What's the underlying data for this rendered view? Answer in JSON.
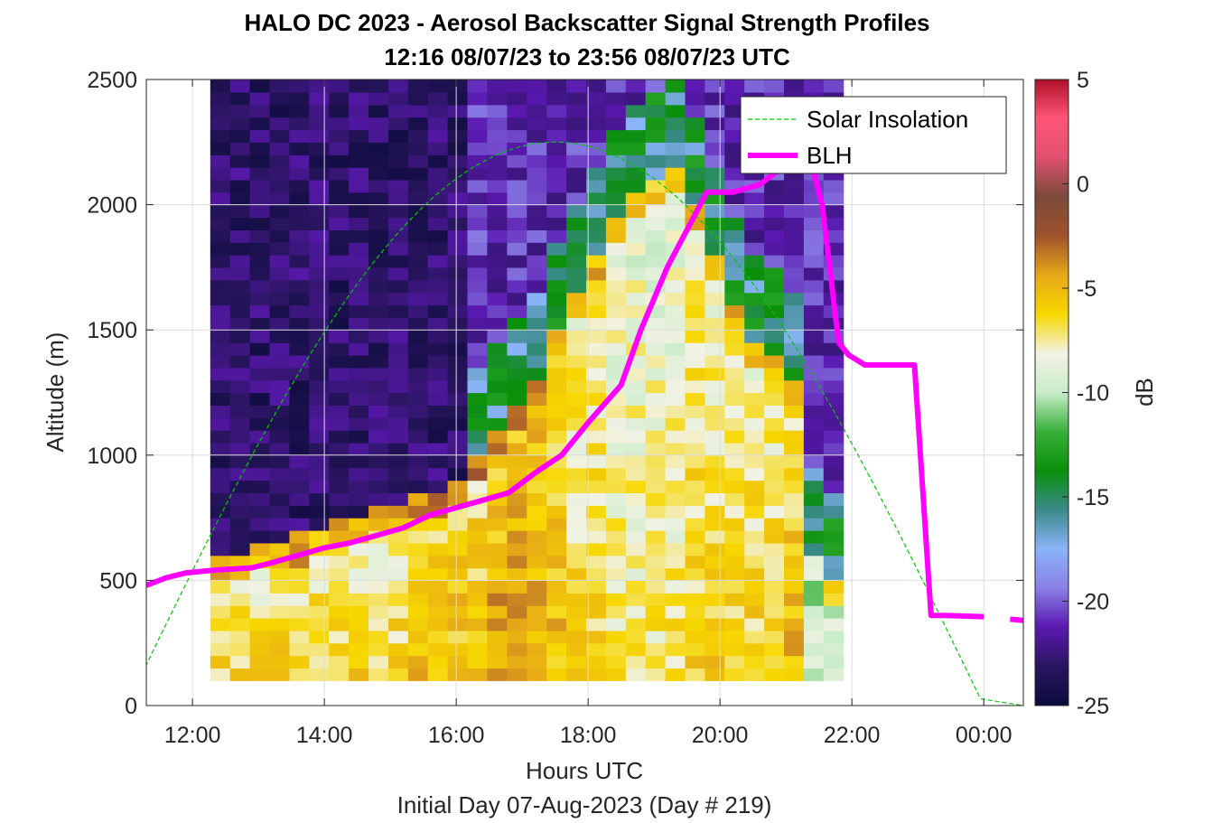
{
  "chart_data": {
    "type": "heatmap",
    "title": "HALO DC 2023 - Aerosol Backscatter Signal Strength Profiles",
    "subtitle": "12:16 08/07/23 to 23:56 08/07/23  UTC",
    "xlabel": "Hours UTC",
    "footer": "Initial Day 07-Aug-2023 (Day # 219)",
    "ylabel": "Altitude (m)",
    "xlim": [
      11.3,
      24.6
    ],
    "ylim": [
      0,
      2500
    ],
    "x_ticks": [
      12,
      14,
      16,
      18,
      20,
      22,
      24
    ],
    "x_tick_labels": [
      "12:00",
      "14:00",
      "16:00",
      "18:00",
      "20:00",
      "22:00",
      "00:00"
    ],
    "y_ticks": [
      0,
      500,
      1000,
      1500,
      2000,
      2500
    ],
    "y_tick_labels": [
      "0",
      "500",
      "1000",
      "1500",
      "2000",
      "2500"
    ],
    "grid": true,
    "colorbar": {
      "label": "dB",
      "range": [
        -25,
        5
      ],
      "ticks": [
        -25,
        -20,
        -15,
        -10,
        -5,
        0,
        5
      ],
      "tick_labels": [
        "-25",
        "-20",
        "-15",
        "-10",
        "-5",
        "0",
        "5"
      ],
      "colors": [
        "#0b0b3b",
        "#2a1560",
        "#5a18b0",
        "#8a7fe6",
        "#8ab4f8",
        "#3a8a8a",
        "#0a8f0a",
        "#38b038",
        "#c8ecc8",
        "#f2f2e4",
        "#f7d700",
        "#e6a817",
        "#a0522d",
        "#7a4a3a",
        "#e05070",
        "#ff5577",
        "#b0102a"
      ]
    },
    "grid_data": {
      "time_start": 12.27,
      "time_step": 0.3,
      "alt_start": 100,
      "alt_step": 50,
      "columns": [
        {
          "sfc": -6,
          "top": 580
        },
        {
          "sfc": -6,
          "top": 600
        },
        {
          "sfc": -6,
          "top": 620
        },
        {
          "sfc": -6,
          "top": 640
        },
        {
          "sfc": -6,
          "top": 660
        },
        {
          "sfc": -6,
          "top": 690
        },
        {
          "sfc": -6,
          "top": 720
        },
        {
          "sfc": -6,
          "top": 750
        },
        {
          "sfc": -6,
          "top": 780
        },
        {
          "sfc": -6,
          "top": 800
        },
        {
          "sfc": -5,
          "top": 820
        },
        {
          "sfc": -5,
          "top": 850
        },
        {
          "sfc": -5,
          "top": 900
        },
        {
          "sfc": -5,
          "top": 980
        },
        {
          "sfc": -4,
          "top": 1100
        },
        {
          "sfc": -4,
          "top": 1200
        },
        {
          "sfc": -4,
          "top": 1300
        },
        {
          "sfc": -5,
          "top": 1500
        },
        {
          "sfc": -6,
          "top": 1650
        },
        {
          "sfc": -6,
          "top": 1800
        },
        {
          "sfc": -7,
          "top": 1950
        },
        {
          "sfc": -7,
          "top": 2050
        },
        {
          "sfc": -7,
          "top": 2100
        },
        {
          "sfc": -7,
          "top": 2150
        },
        {
          "sfc": -6,
          "top": 2000
        },
        {
          "sfc": -6,
          "top": 1800
        },
        {
          "sfc": -6,
          "top": 1600
        },
        {
          "sfc": -6,
          "top": 1450
        },
        {
          "sfc": -6,
          "top": 1400
        },
        {
          "sfc": -5,
          "top": 1300
        },
        {
          "sfc": -9,
          "top": 600
        },
        {
          "sfc": -8,
          "top": 500
        }
      ]
    },
    "series": [
      {
        "name": "Solar Insolation",
        "style": "dashed",
        "color": "#00c800",
        "peak_time": 17.25,
        "peak_alt": 2250,
        "zero_times": [
          11.0,
          24.0
        ]
      },
      {
        "name": "BLH",
        "style": "solid",
        "color": "#ff00ff",
        "x": [
          11.3,
          11.6,
          11.9,
          12.3,
          12.9,
          13.2,
          13.6,
          14.0,
          14.4,
          14.8,
          15.2,
          15.6,
          16.0,
          16.4,
          16.8,
          17.2,
          17.6,
          18.0,
          18.4,
          18.5,
          18.8,
          19.2,
          19.6,
          19.8,
          20.2,
          20.6,
          20.9,
          21.1,
          21.4,
          21.55,
          21.8,
          21.95,
          22.2,
          22.4,
          22.8,
          22.95,
          23.2,
          23.4,
          24.0,
          24.4,
          24.6
        ],
        "y": [
          480,
          510,
          530,
          540,
          550,
          570,
          600,
          630,
          650,
          680,
          710,
          760,
          790,
          820,
          850,
          930,
          1000,
          1130,
          1250,
          1280,
          1500,
          1750,
          1950,
          2050,
          2050,
          2080,
          2140,
          2150,
          2150,
          2000,
          1450,
          1400,
          1360,
          1360,
          1360,
          1360,
          360,
          360,
          355,
          345,
          340
        ]
      }
    ],
    "legend": {
      "position": "top-right",
      "entries": [
        "Solar Insolation",
        "BLH"
      ]
    }
  }
}
